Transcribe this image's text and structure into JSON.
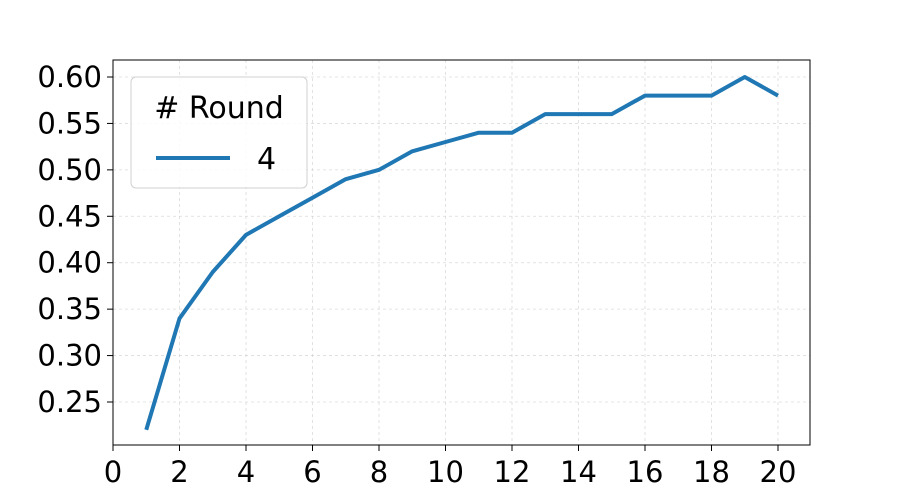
{
  "chart_data": {
    "type": "line",
    "title": "",
    "xlabel": "",
    "ylabel": "",
    "xlim": [
      0,
      21
    ],
    "ylim": [
      0.2,
      0.62
    ],
    "grid": true,
    "legend_placement": "top-left",
    "legend": {
      "title": "# Round"
    },
    "x_ticks": [
      "0",
      "2",
      "4",
      "6",
      "8",
      "10",
      "12",
      "14",
      "16",
      "18",
      "20"
    ],
    "y_ticks": [
      "0.25",
      "0.30",
      "0.35",
      "0.40",
      "0.45",
      "0.50",
      "0.55",
      "0.60"
    ],
    "x": [
      1,
      2,
      3,
      4,
      5,
      6,
      7,
      8,
      9,
      10,
      11,
      12,
      13,
      14,
      15,
      16,
      17,
      18,
      19,
      20
    ],
    "series": [
      {
        "name": "4",
        "color": "#1f77b4",
        "values": [
          0.22,
          0.34,
          0.39,
          0.43,
          0.45,
          0.47,
          0.49,
          0.5,
          0.52,
          0.53,
          0.54,
          0.54,
          0.56,
          0.56,
          0.56,
          0.58,
          0.58,
          0.58,
          0.6,
          0.58
        ]
      }
    ]
  }
}
